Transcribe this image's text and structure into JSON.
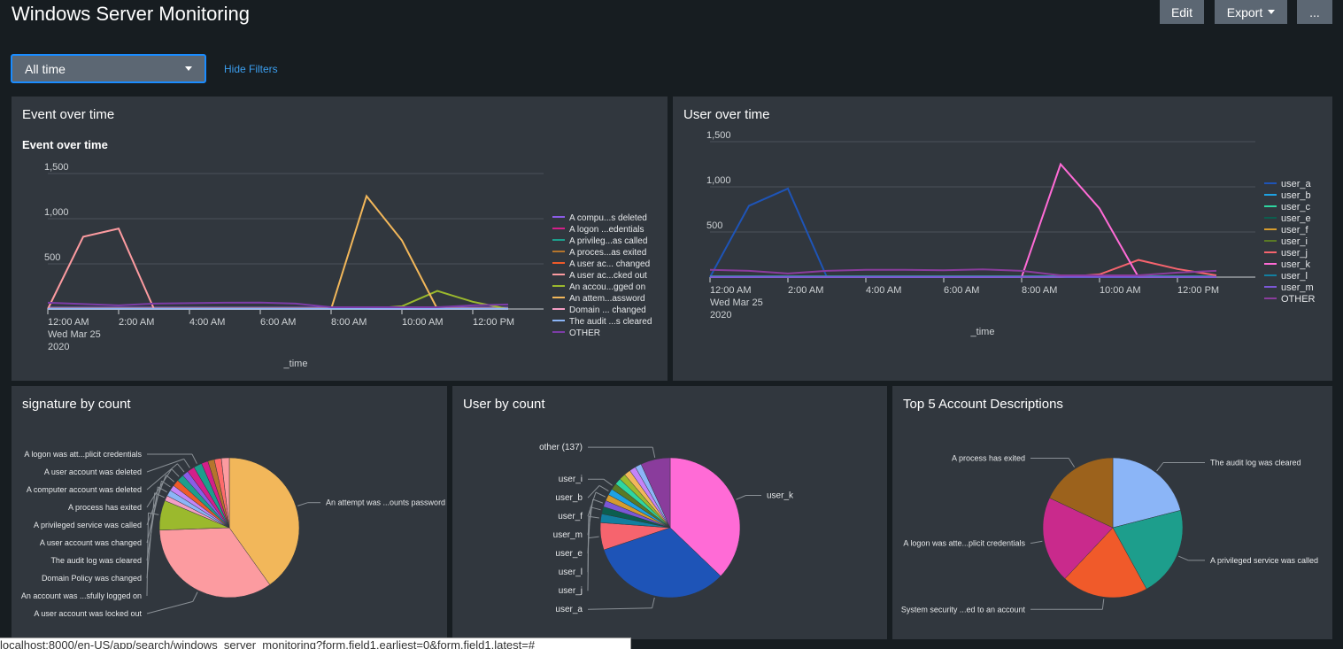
{
  "header": {
    "title": "Windows Server Monitoring",
    "edit_label": "Edit",
    "export_label": "Export",
    "more_label": "..."
  },
  "filters": {
    "time_value": "All time",
    "hide_filters_label": "Hide Filters"
  },
  "colors": {
    "accent": "#1a8cff",
    "panel_bg": "#31373e",
    "page_bg": "#171d21",
    "button_bg": "#5c6773",
    "link": "#3b9ded"
  },
  "panels": {
    "event_over_time": {
      "title": "Event over time",
      "chart_title": "Event over time",
      "xlabel": "_time"
    },
    "user_over_time": {
      "title": "User over time",
      "xlabel": "_time"
    },
    "signature_by_count": {
      "title": "signature by count"
    },
    "user_by_count": {
      "title": "User by count"
    },
    "top5_account": {
      "title": "Top 5 Account Descriptions"
    }
  },
  "status_bar": {
    "url": "localhost:8000/en-US/app/search/windows_server_monitoring?form.field1.earliest=0&form.field1.latest=#"
  },
  "chart_data": [
    {
      "id": "event_over_time",
      "type": "line",
      "title": "Event over time",
      "xlabel": "_time",
      "x": [
        "12:00 AM",
        "1:00 AM",
        "2:00 AM",
        "3:00 AM",
        "4:00 AM",
        "5:00 AM",
        "6:00 AM",
        "7:00 AM",
        "8:00 AM",
        "9:00 AM",
        "10:00 AM",
        "11:00 AM",
        "12:00 PM",
        "1:00 PM"
      ],
      "x_ticks": [
        "12:00 AM",
        "2:00 AM",
        "4:00 AM",
        "6:00 AM",
        "8:00 AM",
        "10:00 AM",
        "12:00 PM"
      ],
      "x_first_tick_extra": [
        "Wed Mar 25",
        "2020"
      ],
      "y_ticks": [
        "500",
        "1,000",
        "1,500"
      ],
      "ylim": [
        0,
        1500
      ],
      "grid": true,
      "legend_position": "right",
      "series": [
        {
          "name": "A compu...s deleted",
          "color": "#8a5ce6",
          "values": [
            15,
            15,
            15,
            15,
            15,
            15,
            15,
            15,
            15,
            15,
            15,
            15,
            15,
            15
          ]
        },
        {
          "name": "A logon ...edentials",
          "color": "#d41f8a",
          "values": [
            10,
            10,
            10,
            10,
            10,
            10,
            10,
            10,
            10,
            10,
            10,
            10,
            10,
            10
          ]
        },
        {
          "name": "A privileg...as called",
          "color": "#1d9e8c",
          "values": [
            8,
            8,
            8,
            8,
            8,
            8,
            8,
            8,
            8,
            8,
            8,
            8,
            8,
            8
          ]
        },
        {
          "name": "A proces...as exited",
          "color": "#b5752c",
          "values": [
            6,
            6,
            6,
            6,
            6,
            6,
            6,
            6,
            6,
            6,
            6,
            6,
            6,
            6
          ]
        },
        {
          "name": "A user ac... changed",
          "color": "#ee5a2a",
          "values": [
            5,
            5,
            5,
            5,
            5,
            5,
            5,
            5,
            5,
            5,
            5,
            5,
            5,
            5
          ]
        },
        {
          "name": "A user ac...cked out",
          "color": "#fc9ba0",
          "values": [
            0,
            800,
            890,
            0,
            0,
            0,
            0,
            0,
            0,
            0,
            0,
            0,
            0,
            0
          ]
        },
        {
          "name": "An accou...gged on",
          "color": "#9bb92d",
          "values": [
            0,
            0,
            0,
            0,
            0,
            0,
            0,
            0,
            0,
            0,
            30,
            200,
            80,
            0
          ]
        },
        {
          "name": "An attem...assword",
          "color": "#f2b75a",
          "values": [
            0,
            0,
            0,
            0,
            0,
            0,
            0,
            0,
            0,
            1250,
            760,
            0,
            0,
            0
          ]
        },
        {
          "name": "Domain ... changed",
          "color": "#f49ec4",
          "values": [
            4,
            4,
            4,
            4,
            4,
            4,
            4,
            4,
            4,
            4,
            4,
            4,
            4,
            4
          ]
        },
        {
          "name": "The audit ...s cleared",
          "color": "#8bb5f7",
          "values": [
            3,
            3,
            3,
            3,
            3,
            3,
            3,
            3,
            3,
            3,
            3,
            3,
            3,
            3
          ]
        },
        {
          "name": "OTHER",
          "color": "#7d3ca8",
          "values": [
            70,
            55,
            40,
            60,
            65,
            70,
            72,
            60,
            20,
            20,
            20,
            20,
            40,
            50
          ]
        }
      ]
    },
    {
      "id": "user_over_time",
      "type": "line",
      "title": "",
      "xlabel": "_time",
      "x": [
        "12:00 AM",
        "1:00 AM",
        "2:00 AM",
        "3:00 AM",
        "4:00 AM",
        "5:00 AM",
        "6:00 AM",
        "7:00 AM",
        "8:00 AM",
        "9:00 AM",
        "10:00 AM",
        "11:00 AM",
        "12:00 PM",
        "1:00 PM"
      ],
      "x_ticks": [
        "12:00 AM",
        "2:00 AM",
        "4:00 AM",
        "6:00 AM",
        "8:00 AM",
        "10:00 AM",
        "12:00 PM"
      ],
      "x_first_tick_extra": [
        "Wed Mar 25",
        "2020"
      ],
      "y_ticks": [
        "500",
        "1,000",
        "1,500"
      ],
      "ylim": [
        0,
        1500
      ],
      "grid": true,
      "legend_position": "right",
      "series": [
        {
          "name": "user_a",
          "color": "#1e54b7",
          "values": [
            0,
            790,
            980,
            0,
            0,
            0,
            0,
            0,
            0,
            0,
            0,
            0,
            0,
            0
          ]
        },
        {
          "name": "user_b",
          "color": "#1ea2e3",
          "values": [
            10,
            10,
            10,
            10,
            10,
            10,
            10,
            10,
            10,
            10,
            10,
            10,
            10,
            10
          ]
        },
        {
          "name": "user_c",
          "color": "#2ed6a0",
          "values": [
            8,
            8,
            8,
            8,
            8,
            8,
            8,
            8,
            8,
            8,
            8,
            8,
            8,
            8
          ]
        },
        {
          "name": "user_e",
          "color": "#0c5e4f",
          "values": [
            6,
            6,
            6,
            6,
            6,
            6,
            6,
            6,
            6,
            6,
            6,
            6,
            6,
            6
          ]
        },
        {
          "name": "user_f",
          "color": "#d69c2e",
          "values": [
            5,
            5,
            5,
            5,
            5,
            5,
            5,
            5,
            5,
            5,
            5,
            5,
            5,
            5
          ]
        },
        {
          "name": "user_i",
          "color": "#5a7a25",
          "values": [
            4,
            4,
            4,
            4,
            4,
            4,
            4,
            4,
            4,
            4,
            4,
            4,
            4,
            4
          ]
        },
        {
          "name": "user_j",
          "color": "#f6646e",
          "values": [
            0,
            0,
            0,
            0,
            0,
            0,
            0,
            0,
            0,
            0,
            30,
            190,
            90,
            20
          ]
        },
        {
          "name": "user_k",
          "color": "#ff6bd6",
          "values": [
            0,
            0,
            0,
            0,
            0,
            0,
            0,
            0,
            0,
            1250,
            760,
            0,
            0,
            0
          ]
        },
        {
          "name": "user_l",
          "color": "#127fa0",
          "values": [
            3,
            3,
            3,
            3,
            3,
            3,
            3,
            3,
            3,
            3,
            3,
            3,
            3,
            3
          ]
        },
        {
          "name": "user_m",
          "color": "#7b57d6",
          "values": [
            2,
            2,
            2,
            2,
            2,
            2,
            2,
            2,
            2,
            2,
            2,
            2,
            2,
            2
          ]
        },
        {
          "name": "OTHER",
          "color": "#8a3c9c",
          "values": [
            80,
            70,
            40,
            70,
            80,
            80,
            75,
            85,
            70,
            20,
            20,
            20,
            50,
            70
          ]
        }
      ]
    },
    {
      "id": "signature_by_count",
      "type": "pie",
      "title": "signature by count",
      "slices": [
        {
          "label": "An attempt was ...ounts password",
          "value": 1980,
          "color": "#f2b75a"
        },
        {
          "label": "A user account was locked out",
          "value": 1690,
          "color": "#fc9ba0"
        },
        {
          "label": "An account was ...sfully logged on",
          "value": 340,
          "color": "#9bb92d"
        },
        {
          "label": "Domain Policy was changed",
          "value": 60,
          "color": "#f49ec4"
        },
        {
          "label": "The audit log was cleared",
          "value": 70,
          "color": "#8bb5f7"
        },
        {
          "label": "A user account was changed",
          "value": 65,
          "color": "#c484f7"
        },
        {
          "label": "A privileged service was called",
          "value": 75,
          "color": "#ee5a2a"
        },
        {
          "label": "A process has exited",
          "value": 80,
          "color": "#1d9e8c"
        },
        {
          "label": "A computer account was deleted",
          "value": 70,
          "color": "#8a5ce6"
        },
        {
          "label": "A user account was deleted",
          "value": 85,
          "color": "#d41f8a"
        },
        {
          "label": "A logon was att...plicit credentials",
          "value": 95,
          "color": "#1d9e8c"
        },
        {
          "label": "",
          "value": 75,
          "color": "#d41f8a"
        },
        {
          "label": "",
          "value": 75,
          "color": "#b5752c"
        },
        {
          "label": "",
          "value": 80,
          "color": "#ff6b6b"
        },
        {
          "label": "",
          "value": 90,
          "color": "#fc9ba0"
        }
      ]
    },
    {
      "id": "user_by_count",
      "type": "pie",
      "title": "User by count",
      "slices": [
        {
          "label": "user_k",
          "value": 2010,
          "color": "#ff6bd6"
        },
        {
          "label": "user_a",
          "value": 1770,
          "color": "#1e54b7"
        },
        {
          "label": "user_j",
          "value": 340,
          "color": "#f6646e"
        },
        {
          "label": "user_l",
          "value": 110,
          "color": "#127fa0"
        },
        {
          "label": "user_e",
          "value": 90,
          "color": "#0c5e4f"
        },
        {
          "label": "user_m",
          "value": 80,
          "color": "#7b57d6"
        },
        {
          "label": "user_f",
          "value": 80,
          "color": "#d69c2e"
        },
        {
          "label": "user_b",
          "value": 80,
          "color": "#1ea2e3"
        },
        {
          "label": "user_i",
          "value": 80,
          "color": "#5a7a25"
        },
        {
          "label": "",
          "value": 80,
          "color": "#2ed6a0"
        },
        {
          "label": "",
          "value": 80,
          "color": "#9bb92d"
        },
        {
          "label": "",
          "value": 80,
          "color": "#f2b75a"
        },
        {
          "label": "",
          "value": 80,
          "color": "#c484f7"
        },
        {
          "label": "",
          "value": 80,
          "color": "#8bb5f7"
        },
        {
          "label": "other (137)",
          "value": 370,
          "color": "#8a3c9c"
        }
      ]
    },
    {
      "id": "top5_account",
      "type": "pie",
      "title": "Top 5 Account Descriptions",
      "slices": [
        {
          "label": "The audit log was cleared",
          "value": 21,
          "color": "#8bb5f7"
        },
        {
          "label": "A privileged service was called",
          "value": 21,
          "color": "#1d9e8c"
        },
        {
          "label": "System security ...ed to an account",
          "value": 20,
          "color": "#f05a2a"
        },
        {
          "label": "A logon was atte...plicit credentials",
          "value": 20,
          "color": "#c92a8c"
        },
        {
          "label": "A process has exited",
          "value": 18,
          "color": "#9c621c"
        }
      ]
    }
  ]
}
